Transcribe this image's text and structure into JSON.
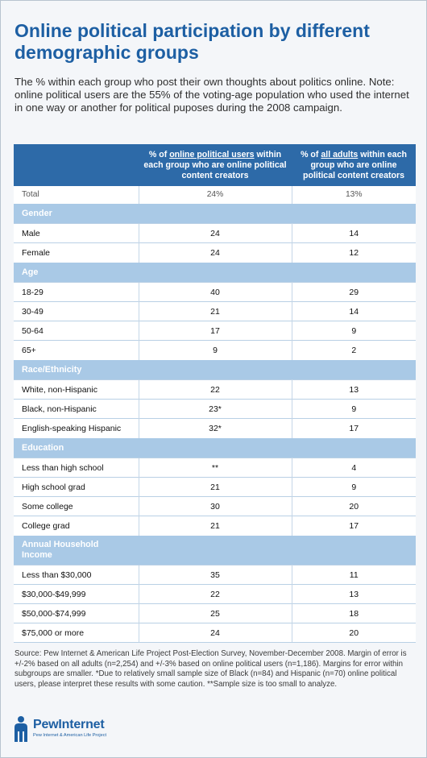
{
  "title": "Online political participation by different demographic groups",
  "subtitle": "The % within each group who post their own thoughts about politics online. Note: online political users are the 55% of the voting-age population who used the internet in one way or another for political puposes during the 2008 campaign.",
  "table": {
    "col1_html": "% of <u>online political users</u> within each group who are online political content creators",
    "col2_html": "% of <u>all adults</u> within each group who are online political content creators"
  },
  "chart_data": {
    "type": "table",
    "columns": [
      "% of online political users within each group who are online political content creators",
      "% of all adults within each group who are online political content creators"
    ],
    "total": {
      "label": "Total",
      "v1": "24%",
      "v2": "13%"
    },
    "sections": [
      {
        "name": "Gender",
        "rows": [
          {
            "label": "Male",
            "v1": "24",
            "v2": "14"
          },
          {
            "label": "Female",
            "v1": "24",
            "v2": "12"
          }
        ]
      },
      {
        "name": "Age",
        "rows": [
          {
            "label": "18-29",
            "v1": "40",
            "v2": "29"
          },
          {
            "label": "30-49",
            "v1": "21",
            "v2": "14"
          },
          {
            "label": "50-64",
            "v1": "17",
            "v2": "9"
          },
          {
            "label": "65+",
            "v1": "9",
            "v2": "2"
          }
        ]
      },
      {
        "name": "Race/Ethnicity",
        "rows": [
          {
            "label": "White, non-Hispanic",
            "v1": "22",
            "v2": "13"
          },
          {
            "label": "Black, non-Hispanic",
            "v1": "23*",
            "v2": "9"
          },
          {
            "label": "English-speaking Hispanic",
            "v1": "32*",
            "v2": "17"
          }
        ]
      },
      {
        "name": "Education",
        "rows": [
          {
            "label": "Less than high school",
            "v1": "**",
            "v2": "4"
          },
          {
            "label": "High school grad",
            "v1": "21",
            "v2": "9"
          },
          {
            "label": "Some college",
            "v1": "30",
            "v2": "20"
          },
          {
            "label": "College grad",
            "v1": "21",
            "v2": "17"
          }
        ]
      },
      {
        "name": "Annual Household Income",
        "rows": [
          {
            "label": "Less than $30,000",
            "v1": "35",
            "v2": "11"
          },
          {
            "label": "$30,000-$49,999",
            "v1": "22",
            "v2": "13"
          },
          {
            "label": "$50,000-$74,999",
            "v1": "25",
            "v2": "18"
          },
          {
            "label": "$75,000 or more",
            "v1": "24",
            "v2": "20"
          }
        ]
      }
    ]
  },
  "source": "Source: Pew Internet & American Life Project Post-Election Survey, November-December 2008. Margin of error is +/-2% based on all adults (n=2,254) and +/-3% based on online political users (n=1,186). Margins for error within subgroups are smaller. *Due to relatively small sample size of Black (n=84) and Hispanic (n=70) online political users, please interpret these results with some caution. **Sample size is too small to analyze.",
  "logo": {
    "wordmark": "PewInternet",
    "tagline": "Pew Internet & American Life Project",
    "icon": "pew-person-icon",
    "color": "#1d5fa3"
  }
}
